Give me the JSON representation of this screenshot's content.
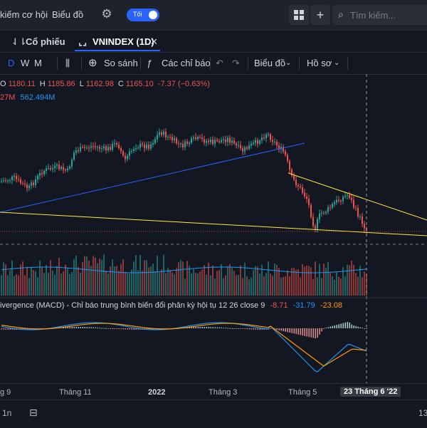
{
  "header": {
    "nav_opportunities": "kiếm cơ hội",
    "nav_chart": "Biểu đồ",
    "toggle_label": "Tối",
    "search_placeholder": "Tìm kiếm..."
  },
  "tabs": [
    {
      "label": "Cổ phiếu"
    },
    {
      "label": "VNINDEX (1D)"
    }
  ],
  "toolbar": {
    "intervals": [
      "D",
      "W",
      "M"
    ],
    "compare": "So sánh",
    "indicators": "Các chỉ báo",
    "chart_type": "Biểu đồ",
    "profile": "Hồ sơ"
  },
  "legend": {
    "open_label": "O",
    "open": "1180.11",
    "high_label": "H",
    "high": "1185.86",
    "low_label": "L",
    "low": "1162.98",
    "close_label": "C",
    "close": "1165.10",
    "change": "-7.37 (−0.63%)",
    "volume_a": "27M",
    "volume_b": "562.494M"
  },
  "macd": {
    "title": "ivergence (MACD) - Chỉ báo trung bình biến đổi phân kỳ hội tụ",
    "params": "12 26 close 9",
    "hist": "-8.71",
    "macd": "-31.79",
    "signal": "-23.08"
  },
  "xaxis": {
    "labels": [
      "g 9",
      "Tháng 11",
      "2022",
      "Tháng 3",
      "Tháng 5"
    ],
    "crosshair": "23 Tháng 6 '22"
  },
  "bottom": {
    "timeframe": "1n",
    "right_value": "13"
  },
  "colors": {
    "up": "#26a69a",
    "down": "#ef5350",
    "accent": "#2962ff",
    "trendline": "#ffeb3b",
    "blueline": "#2962ff",
    "macd_line": "#2196f3",
    "signal_line": "#ff9800"
  }
}
